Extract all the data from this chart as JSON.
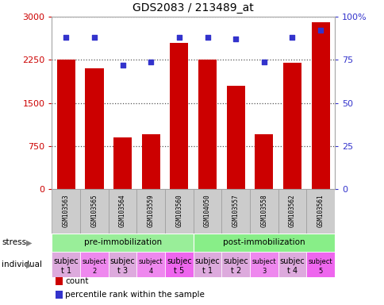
{
  "title": "GDS2083 / 213489_at",
  "samples": [
    "GSM103563",
    "GSM103565",
    "GSM103564",
    "GSM103559",
    "GSM103560",
    "GSM104050",
    "GSM103557",
    "GSM103558",
    "GSM103562",
    "GSM103561"
  ],
  "counts": [
    2250,
    2100,
    900,
    950,
    2550,
    2250,
    1800,
    950,
    2200,
    2900
  ],
  "percentile_ranks": [
    88,
    88,
    72,
    74,
    88,
    88,
    87,
    74,
    88,
    92
  ],
  "bar_color": "#cc0000",
  "dot_color": "#3333cc",
  "stress_groups": [
    {
      "label": "pre-immobilization",
      "start": 0,
      "end": 5,
      "color": "#99ee99"
    },
    {
      "label": "post-immobilization",
      "start": 5,
      "end": 10,
      "color": "#88ee88"
    }
  ],
  "individual_labels": [
    [
      "subjec",
      "t 1"
    ],
    [
      "subject",
      "2"
    ],
    [
      "subjec",
      "t 3"
    ],
    [
      "subject",
      "4"
    ],
    [
      "subjec",
      "t 5"
    ],
    [
      "subjec",
      "t 1"
    ],
    [
      "subjec",
      "t 2"
    ],
    [
      "subject",
      "3"
    ],
    [
      "subjec",
      "t 4"
    ],
    [
      "subject",
      "5"
    ]
  ],
  "individual_colors": [
    "#ddaadd",
    "#ee88ee",
    "#ddaadd",
    "#ee88ee",
    "#ee66ee",
    "#ddaadd",
    "#ddaadd",
    "#ee88ee",
    "#ddaadd",
    "#ee66ee"
  ],
  "individual_font_sizes": [
    7,
    6,
    7,
    6,
    7,
    7,
    7,
    6,
    7,
    6
  ],
  "ylim_left": [
    0,
    3000
  ],
  "ylim_right": [
    0,
    100
  ],
  "yticks_left": [
    0,
    750,
    1500,
    2250,
    3000
  ],
  "yticks_right": [
    0,
    25,
    50,
    75,
    100
  ],
  "grid_color": "#555555",
  "bg_color": "#ffffff",
  "tick_label_color_left": "#cc0000",
  "tick_label_color_right": "#3333cc",
  "label_box_color": "#cccccc",
  "label_box_border": "#999999"
}
